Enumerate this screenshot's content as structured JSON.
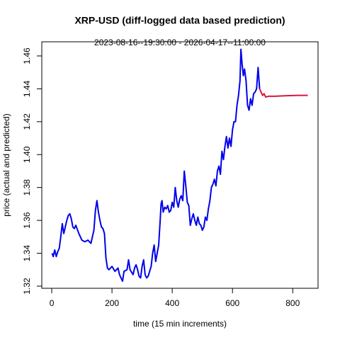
{
  "chart_data": {
    "type": "line",
    "title": "XRP-USD (diff-logged data based prediction)",
    "subtitle": "2023-08-16--19:30:00  -  2026-04-17--11:00:00",
    "x_label": "time (15 min increments)",
    "y_label": "price (actual and predicted)",
    "xlim": [
      -33,
      884
    ],
    "ylim": [
      1.3187,
      1.4686
    ],
    "xticks": [
      0,
      200,
      400,
      600,
      800
    ],
    "yticks": [
      1.32,
      1.34,
      1.36,
      1.38,
      {
        "value": 1.4,
        "label": "1.40"
      },
      1.42,
      1.44,
      1.46
    ],
    "series": [
      {
        "name": "actual",
        "color": "#0000ee",
        "x": [
          1,
          5,
          10,
          15,
          20,
          25,
          30,
          35,
          40,
          45,
          50,
          55,
          60,
          65,
          70,
          75,
          80,
          90,
          100,
          110,
          120,
          130,
          140,
          145,
          150,
          155,
          160,
          165,
          170,
          175,
          180,
          185,
          190,
          200,
          210,
          220,
          225,
          230,
          235,
          240,
          250,
          255,
          260,
          270,
          275,
          280,
          285,
          290,
          295,
          300,
          305,
          310,
          315,
          320,
          325,
          330,
          335,
          340,
          345,
          350,
          355,
          360,
          363,
          366,
          370,
          375,
          380,
          385,
          390,
          395,
          400,
          405,
          410,
          415,
          420,
          425,
          430,
          435,
          440,
          445,
          450,
          455,
          460,
          465,
          470,
          475,
          480,
          485,
          490,
          495,
          500,
          505,
          510,
          515,
          520,
          525,
          530,
          535,
          540,
          545,
          550,
          555,
          560,
          565,
          570,
          575,
          580,
          585,
          590,
          595,
          600,
          605,
          610,
          615,
          620,
          625,
          628,
          632,
          636,
          640,
          645,
          650,
          655,
          660,
          665,
          670,
          675,
          680,
          685,
          690
        ],
        "values": [
          1.34,
          1.338,
          1.342,
          1.338,
          1.341,
          1.343,
          1.35,
          1.358,
          1.352,
          1.356,
          1.36,
          1.363,
          1.364,
          1.361,
          1.356,
          1.355,
          1.357,
          1.352,
          1.348,
          1.347,
          1.348,
          1.346,
          1.354,
          1.366,
          1.372,
          1.365,
          1.36,
          1.356,
          1.355,
          1.352,
          1.337,
          1.331,
          1.33,
          1.332,
          1.329,
          1.331,
          1.327,
          1.325,
          1.323,
          1.329,
          1.33,
          1.336,
          1.33,
          1.327,
          1.331,
          1.333,
          1.33,
          1.326,
          1.325,
          1.332,
          1.336,
          1.327,
          1.325,
          1.326,
          1.329,
          1.332,
          1.34,
          1.345,
          1.335,
          1.34,
          1.345,
          1.36,
          1.37,
          1.372,
          1.365,
          1.368,
          1.367,
          1.369,
          1.365,
          1.366,
          1.371,
          1.368,
          1.38,
          1.372,
          1.368,
          1.373,
          1.375,
          1.372,
          1.39,
          1.381,
          1.371,
          1.369,
          1.357,
          1.361,
          1.364,
          1.36,
          1.357,
          1.362,
          1.358,
          1.357,
          1.354,
          1.356,
          1.362,
          1.36,
          1.367,
          1.372,
          1.38,
          1.382,
          1.385,
          1.381,
          1.39,
          1.393,
          1.388,
          1.402,
          1.397,
          1.405,
          1.411,
          1.404,
          1.41,
          1.405,
          1.415,
          1.42,
          1.42,
          1.43,
          1.436,
          1.445,
          1.464,
          1.455,
          1.448,
          1.452,
          1.445,
          1.43,
          1.427,
          1.434,
          1.43,
          1.437,
          1.438,
          1.44,
          1.453,
          1.44
        ]
      },
      {
        "name": "predicted",
        "color": "#dc143c",
        "x": [
          690,
          695,
          700,
          705,
          710,
          720,
          740,
          780,
          820,
          850
        ],
        "values": [
          1.44,
          1.438,
          1.436,
          1.437,
          1.435,
          1.4355,
          1.4355,
          1.4358,
          1.436,
          1.436
        ]
      }
    ]
  }
}
